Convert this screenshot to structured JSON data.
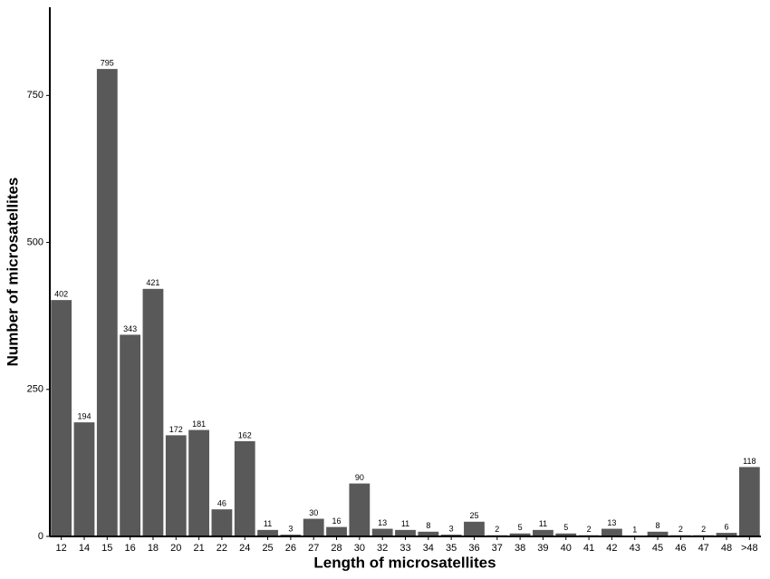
{
  "chart_data": {
    "type": "bar",
    "x_label": "Length of microsatellites",
    "y_label": "Number of microsatellites",
    "categories": [
      "12",
      "14",
      "15",
      "16",
      "18",
      "20",
      "21",
      "22",
      "24",
      "25",
      "26",
      "27",
      "28",
      "30",
      "32",
      "33",
      "34",
      "35",
      "36",
      "37",
      "38",
      "39",
      "40",
      "41",
      "42",
      "43",
      "45",
      "46",
      "47",
      "48",
      ">48"
    ],
    "values": [
      402,
      194,
      795,
      343,
      421,
      172,
      181,
      46,
      162,
      11,
      3,
      30,
      16,
      90,
      13,
      11,
      8,
      3,
      25,
      2,
      5,
      11,
      5,
      2,
      13,
      1,
      8,
      2,
      2,
      6,
      118
    ],
    "color": "#595959",
    "ylim": [
      0,
      900
    ],
    "yticks": [
      0,
      250,
      500,
      750
    ]
  }
}
